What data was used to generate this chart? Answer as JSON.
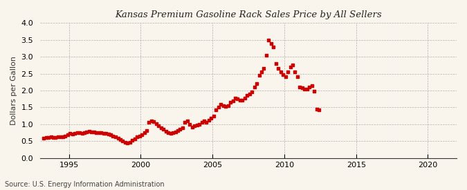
{
  "title": "Kansas Premium Gasoline Rack Sales Price by All Sellers",
  "ylabel": "Dollars per Gallon",
  "source": "Source: U.S. Energy Information Administration",
  "background_color": "#faf5ec",
  "plot_bg_color": "#faf5ec",
  "dot_color": "#cc0000",
  "xlim": [
    1993.0,
    2022.0
  ],
  "ylim": [
    0.0,
    4.0
  ],
  "xticks": [
    1995,
    2000,
    2005,
    2010,
    2015,
    2020
  ],
  "yticks": [
    0.0,
    0.5,
    1.0,
    1.5,
    2.0,
    2.5,
    3.0,
    3.5,
    4.0
  ],
  "data": [
    [
      1993.25,
      0.58
    ],
    [
      1993.42,
      0.6
    ],
    [
      1993.58,
      0.61
    ],
    [
      1993.75,
      0.62
    ],
    [
      1993.92,
      0.6
    ],
    [
      1994.08,
      0.6
    ],
    [
      1994.25,
      0.62
    ],
    [
      1994.42,
      0.63
    ],
    [
      1994.58,
      0.62
    ],
    [
      1994.75,
      0.65
    ],
    [
      1994.92,
      0.68
    ],
    [
      1995.08,
      0.72
    ],
    [
      1995.25,
      0.7
    ],
    [
      1995.42,
      0.72
    ],
    [
      1995.58,
      0.75
    ],
    [
      1995.75,
      0.75
    ],
    [
      1995.92,
      0.72
    ],
    [
      1996.08,
      0.75
    ],
    [
      1996.25,
      0.78
    ],
    [
      1996.42,
      0.8
    ],
    [
      1996.58,
      0.78
    ],
    [
      1996.75,
      0.78
    ],
    [
      1996.92,
      0.75
    ],
    [
      1997.08,
      0.75
    ],
    [
      1997.25,
      0.75
    ],
    [
      1997.42,
      0.73
    ],
    [
      1997.58,
      0.72
    ],
    [
      1997.75,
      0.7
    ],
    [
      1997.92,
      0.68
    ],
    [
      1998.08,
      0.65
    ],
    [
      1998.25,
      0.62
    ],
    [
      1998.42,
      0.58
    ],
    [
      1998.58,
      0.55
    ],
    [
      1998.75,
      0.5
    ],
    [
      1998.92,
      0.46
    ],
    [
      1999.08,
      0.44
    ],
    [
      1999.25,
      0.47
    ],
    [
      1999.42,
      0.52
    ],
    [
      1999.58,
      0.57
    ],
    [
      1999.75,
      0.62
    ],
    [
      1999.92,
      0.65
    ],
    [
      2000.08,
      0.68
    ],
    [
      2000.25,
      0.75
    ],
    [
      2000.42,
      0.82
    ],
    [
      2000.58,
      1.05
    ],
    [
      2000.75,
      1.1
    ],
    [
      2000.92,
      1.08
    ],
    [
      2001.08,
      1.02
    ],
    [
      2001.25,
      0.95
    ],
    [
      2001.42,
      0.9
    ],
    [
      2001.58,
      0.85
    ],
    [
      2001.75,
      0.8
    ],
    [
      2001.92,
      0.75
    ],
    [
      2002.08,
      0.72
    ],
    [
      2002.25,
      0.75
    ],
    [
      2002.42,
      0.78
    ],
    [
      2002.58,
      0.82
    ],
    [
      2002.75,
      0.85
    ],
    [
      2002.92,
      0.9
    ],
    [
      2003.08,
      1.05
    ],
    [
      2003.25,
      1.1
    ],
    [
      2003.42,
      1.0
    ],
    [
      2003.58,
      0.92
    ],
    [
      2003.75,
      0.95
    ],
    [
      2003.92,
      0.98
    ],
    [
      2004.08,
      1.0
    ],
    [
      2004.25,
      1.05
    ],
    [
      2004.42,
      1.1
    ],
    [
      2004.58,
      1.05
    ],
    [
      2004.75,
      1.12
    ],
    [
      2004.92,
      1.18
    ],
    [
      2005.08,
      1.25
    ],
    [
      2005.25,
      1.42
    ],
    [
      2005.42,
      1.5
    ],
    [
      2005.58,
      1.6
    ],
    [
      2005.75,
      1.55
    ],
    [
      2005.92,
      1.52
    ],
    [
      2006.08,
      1.55
    ],
    [
      2006.25,
      1.65
    ],
    [
      2006.42,
      1.7
    ],
    [
      2006.58,
      1.78
    ],
    [
      2006.75,
      1.75
    ],
    [
      2006.92,
      1.72
    ],
    [
      2007.08,
      1.72
    ],
    [
      2007.25,
      1.78
    ],
    [
      2007.42,
      1.85
    ],
    [
      2007.58,
      1.9
    ],
    [
      2007.75,
      1.95
    ],
    [
      2007.92,
      2.1
    ],
    [
      2008.08,
      2.2
    ],
    [
      2008.25,
      2.45
    ],
    [
      2008.42,
      2.55
    ],
    [
      2008.58,
      2.65
    ],
    [
      2008.75,
      3.05
    ],
    [
      2008.92,
      3.5
    ],
    [
      2009.08,
      3.4
    ],
    [
      2009.25,
      3.3
    ],
    [
      2009.42,
      2.8
    ],
    [
      2009.58,
      2.65
    ],
    [
      2009.75,
      2.55
    ],
    [
      2009.92,
      2.48
    ],
    [
      2010.08,
      2.4
    ],
    [
      2010.25,
      2.55
    ],
    [
      2010.42,
      2.7
    ],
    [
      2010.58,
      2.75
    ],
    [
      2010.75,
      2.55
    ],
    [
      2010.92,
      2.4
    ],
    [
      2011.08,
      2.1
    ],
    [
      2011.25,
      2.08
    ],
    [
      2011.42,
      2.05
    ],
    [
      2011.58,
      2.05
    ],
    [
      2011.75,
      2.1
    ],
    [
      2011.92,
      2.15
    ],
    [
      2012.08,
      1.98
    ],
    [
      2012.25,
      1.45
    ],
    [
      2012.42,
      1.42
    ]
  ]
}
